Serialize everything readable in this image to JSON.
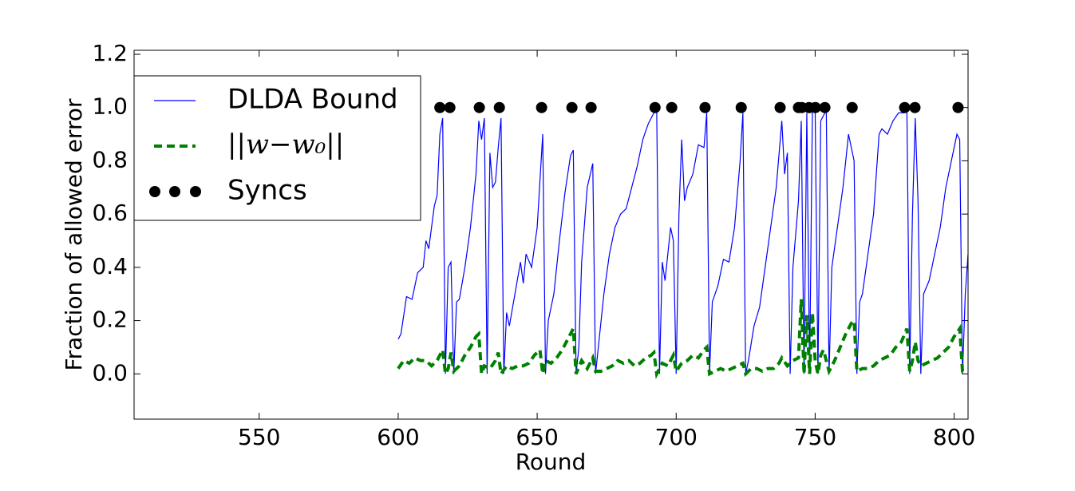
{
  "chart_data": {
    "type": "line",
    "xlabel": "Round",
    "ylabel": "Fraction of allowed error",
    "xlim": [
      505,
      805
    ],
    "ylim": [
      -0.17,
      1.215
    ],
    "xticks": [
      550,
      600,
      650,
      700,
      750,
      800
    ],
    "yticks": [
      {
        "value": 0.0,
        "label": "0.0"
      },
      {
        "value": 0.2,
        "label": "0.2"
      },
      {
        "value": 0.4,
        "label": "0.4"
      },
      {
        "value": 0.6,
        "label": "0.6"
      },
      {
        "value": 0.8,
        "label": "0.8"
      },
      {
        "value": 1.0,
        "label": "1.0"
      },
      {
        "value": 1.2,
        "label": "1.2"
      }
    ],
    "legend": "upper left",
    "series": [
      {
        "name": "DLDA Bound",
        "color": "#0000ff",
        "style": "solid",
        "x": [
          600,
          601,
          603,
          605,
          607,
          609,
          610,
          611,
          612,
          613,
          614,
          615,
          616,
          617,
          618,
          619,
          620,
          621,
          622,
          624,
          626,
          628,
          629,
          630,
          631,
          632,
          633,
          634,
          635,
          636,
          637,
          638,
          639,
          640,
          642,
          644,
          645,
          646,
          648,
          650,
          652,
          653,
          654,
          656,
          658,
          660,
          662,
          663,
          664,
          665,
          666,
          668,
          670,
          671,
          672,
          674,
          676,
          678,
          680,
          682,
          684,
          686,
          688,
          690,
          692,
          693,
          694,
          695,
          696,
          698,
          699,
          700,
          701,
          702,
          703,
          704,
          706,
          708,
          710,
          711,
          712,
          713,
          715,
          717,
          719,
          721,
          723,
          724,
          725,
          726,
          728,
          730,
          732,
          734,
          736,
          738,
          739,
          740,
          741,
          742,
          744,
          745,
          746,
          747,
          748,
          749,
          750,
          751,
          752,
          753,
          754,
          755,
          756,
          758,
          760,
          762,
          763,
          764,
          765,
          766,
          767,
          769,
          771,
          773,
          774,
          776,
          778,
          780,
          782,
          783,
          784,
          785,
          786,
          787,
          788,
          789,
          791,
          793,
          795,
          797,
          799,
          801,
          802,
          803,
          804,
          805
        ],
        "values": [
          0.13,
          0.15,
          0.29,
          0.28,
          0.38,
          0.4,
          0.5,
          0.47,
          0.55,
          0.63,
          0.67,
          0.9,
          0.96,
          0.0,
          0.4,
          0.42,
          0.0,
          0.27,
          0.28,
          0.4,
          0.55,
          0.75,
          0.95,
          0.88,
          0.96,
          0.0,
          0.83,
          0.7,
          0.72,
          0.85,
          0.96,
          0.0,
          0.23,
          0.18,
          0.3,
          0.42,
          0.34,
          0.45,
          0.4,
          0.55,
          0.9,
          0.0,
          0.2,
          0.3,
          0.5,
          0.68,
          0.82,
          0.84,
          0.0,
          0.1,
          0.42,
          0.7,
          0.79,
          0.0,
          0.1,
          0.3,
          0.45,
          0.55,
          0.6,
          0.62,
          0.7,
          0.78,
          0.88,
          0.94,
          0.98,
          0.99,
          0.0,
          0.42,
          0.35,
          0.55,
          0.5,
          0.0,
          0.6,
          0.88,
          0.65,
          0.7,
          0.75,
          0.86,
          0.85,
          0.98,
          0.0,
          0.27,
          0.33,
          0.43,
          0.42,
          0.55,
          0.8,
          0.98,
          0.0,
          0.05,
          0.18,
          0.25,
          0.4,
          0.55,
          0.7,
          0.95,
          0.75,
          0.83,
          0.0,
          0.4,
          0.65,
          0.95,
          0.0,
          0.98,
          0.0,
          0.98,
          0.99,
          0.0,
          0.95,
          0.97,
          0.99,
          0.0,
          0.4,
          0.55,
          0.7,
          0.9,
          0.85,
          0.8,
          0.0,
          0.27,
          0.3,
          0.45,
          0.6,
          0.9,
          0.92,
          0.9,
          0.95,
          0.98,
          0.98,
          0.99,
          0.0,
          0.6,
          0.96,
          0.65,
          0.0,
          0.3,
          0.35,
          0.45,
          0.55,
          0.7,
          0.8,
          0.9,
          0.88,
          0.0,
          0.3,
          0.45
        ]
      },
      {
        "name": "||w−w₀||",
        "color": "#008000",
        "style": "dashed",
        "x": [
          600,
          602,
          604,
          606,
          608,
          610,
          612,
          614,
          616,
          617,
          618,
          619,
          620,
          622,
          624,
          626,
          628,
          629,
          630,
          631,
          633,
          635,
          636,
          637,
          639,
          641,
          643,
          645,
          647,
          649,
          651,
          652,
          653,
          655,
          657,
          659,
          661,
          663,
          664,
          666,
          668,
          670,
          671,
          673,
          675,
          677,
          679,
          681,
          683,
          685,
          687,
          689,
          691,
          692,
          693,
          695,
          697,
          699,
          700,
          702,
          704,
          706,
          708,
          710,
          711,
          712,
          714,
          716,
          718,
          720,
          722,
          724,
          725,
          727,
          729,
          731,
          733,
          735,
          737,
          738,
          740,
          742,
          744,
          745,
          746,
          747,
          748,
          749,
          750,
          751,
          752,
          753,
          754,
          755,
          757,
          759,
          761,
          763,
          764,
          765,
          767,
          769,
          771,
          773,
          775,
          777,
          779,
          781,
          783,
          784,
          785,
          786,
          787,
          788,
          790,
          792,
          794,
          796,
          798,
          800,
          802,
          803,
          805
        ],
        "values": [
          0.02,
          0.05,
          0.04,
          0.06,
          0.05,
          0.05,
          0.03,
          0.05,
          0.09,
          0.0,
          0.02,
          0.08,
          0.01,
          0.03,
          0.07,
          0.1,
          0.14,
          0.15,
          0.0,
          0.03,
          0.02,
          0.05,
          0.08,
          0.0,
          0.03,
          0.02,
          0.03,
          0.03,
          0.04,
          0.07,
          0.09,
          0.0,
          0.05,
          0.04,
          0.06,
          0.09,
          0.13,
          0.17,
          0.0,
          0.05,
          0.02,
          0.06,
          0.01,
          0.01,
          0.02,
          0.03,
          0.05,
          0.04,
          0.05,
          0.03,
          0.04,
          0.06,
          0.07,
          0.08,
          0.0,
          0.04,
          0.03,
          0.07,
          0.01,
          0.04,
          0.05,
          0.07,
          0.06,
          0.09,
          0.1,
          0.0,
          0.01,
          0.02,
          0.01,
          0.02,
          0.03,
          0.04,
          0.0,
          0.02,
          0.02,
          0.01,
          0.02,
          0.02,
          0.04,
          0.06,
          0.03,
          0.05,
          0.06,
          0.28,
          0.0,
          0.22,
          0.0,
          0.23,
          0.05,
          0.0,
          0.07,
          0.09,
          0.05,
          0.01,
          0.05,
          0.1,
          0.15,
          0.19,
          0.2,
          0.01,
          0.02,
          0.02,
          0.03,
          0.05,
          0.06,
          0.07,
          0.1,
          0.12,
          0.17,
          0.01,
          0.05,
          0.12,
          0.05,
          0.03,
          0.04,
          0.05,
          0.06,
          0.08,
          0.1,
          0.14,
          0.17,
          0.01,
          0.005
        ]
      },
      {
        "name": "Syncs",
        "color": "#000000",
        "style": "markers",
        "x": [
          615,
          618.6,
          629.2,
          636.4,
          651.6,
          662.5,
          669.4,
          692.4,
          698.4,
          710.4,
          723.4,
          737.4,
          744,
          745.2,
          747.8,
          750.1,
          753.5,
          763.3,
          782.2,
          785.9,
          801.4
        ],
        "values": [
          1,
          1,
          1,
          1,
          1,
          1,
          1,
          1,
          1,
          1,
          1,
          1,
          1,
          1,
          1,
          1,
          1,
          1,
          1,
          1,
          1
        ]
      }
    ]
  }
}
